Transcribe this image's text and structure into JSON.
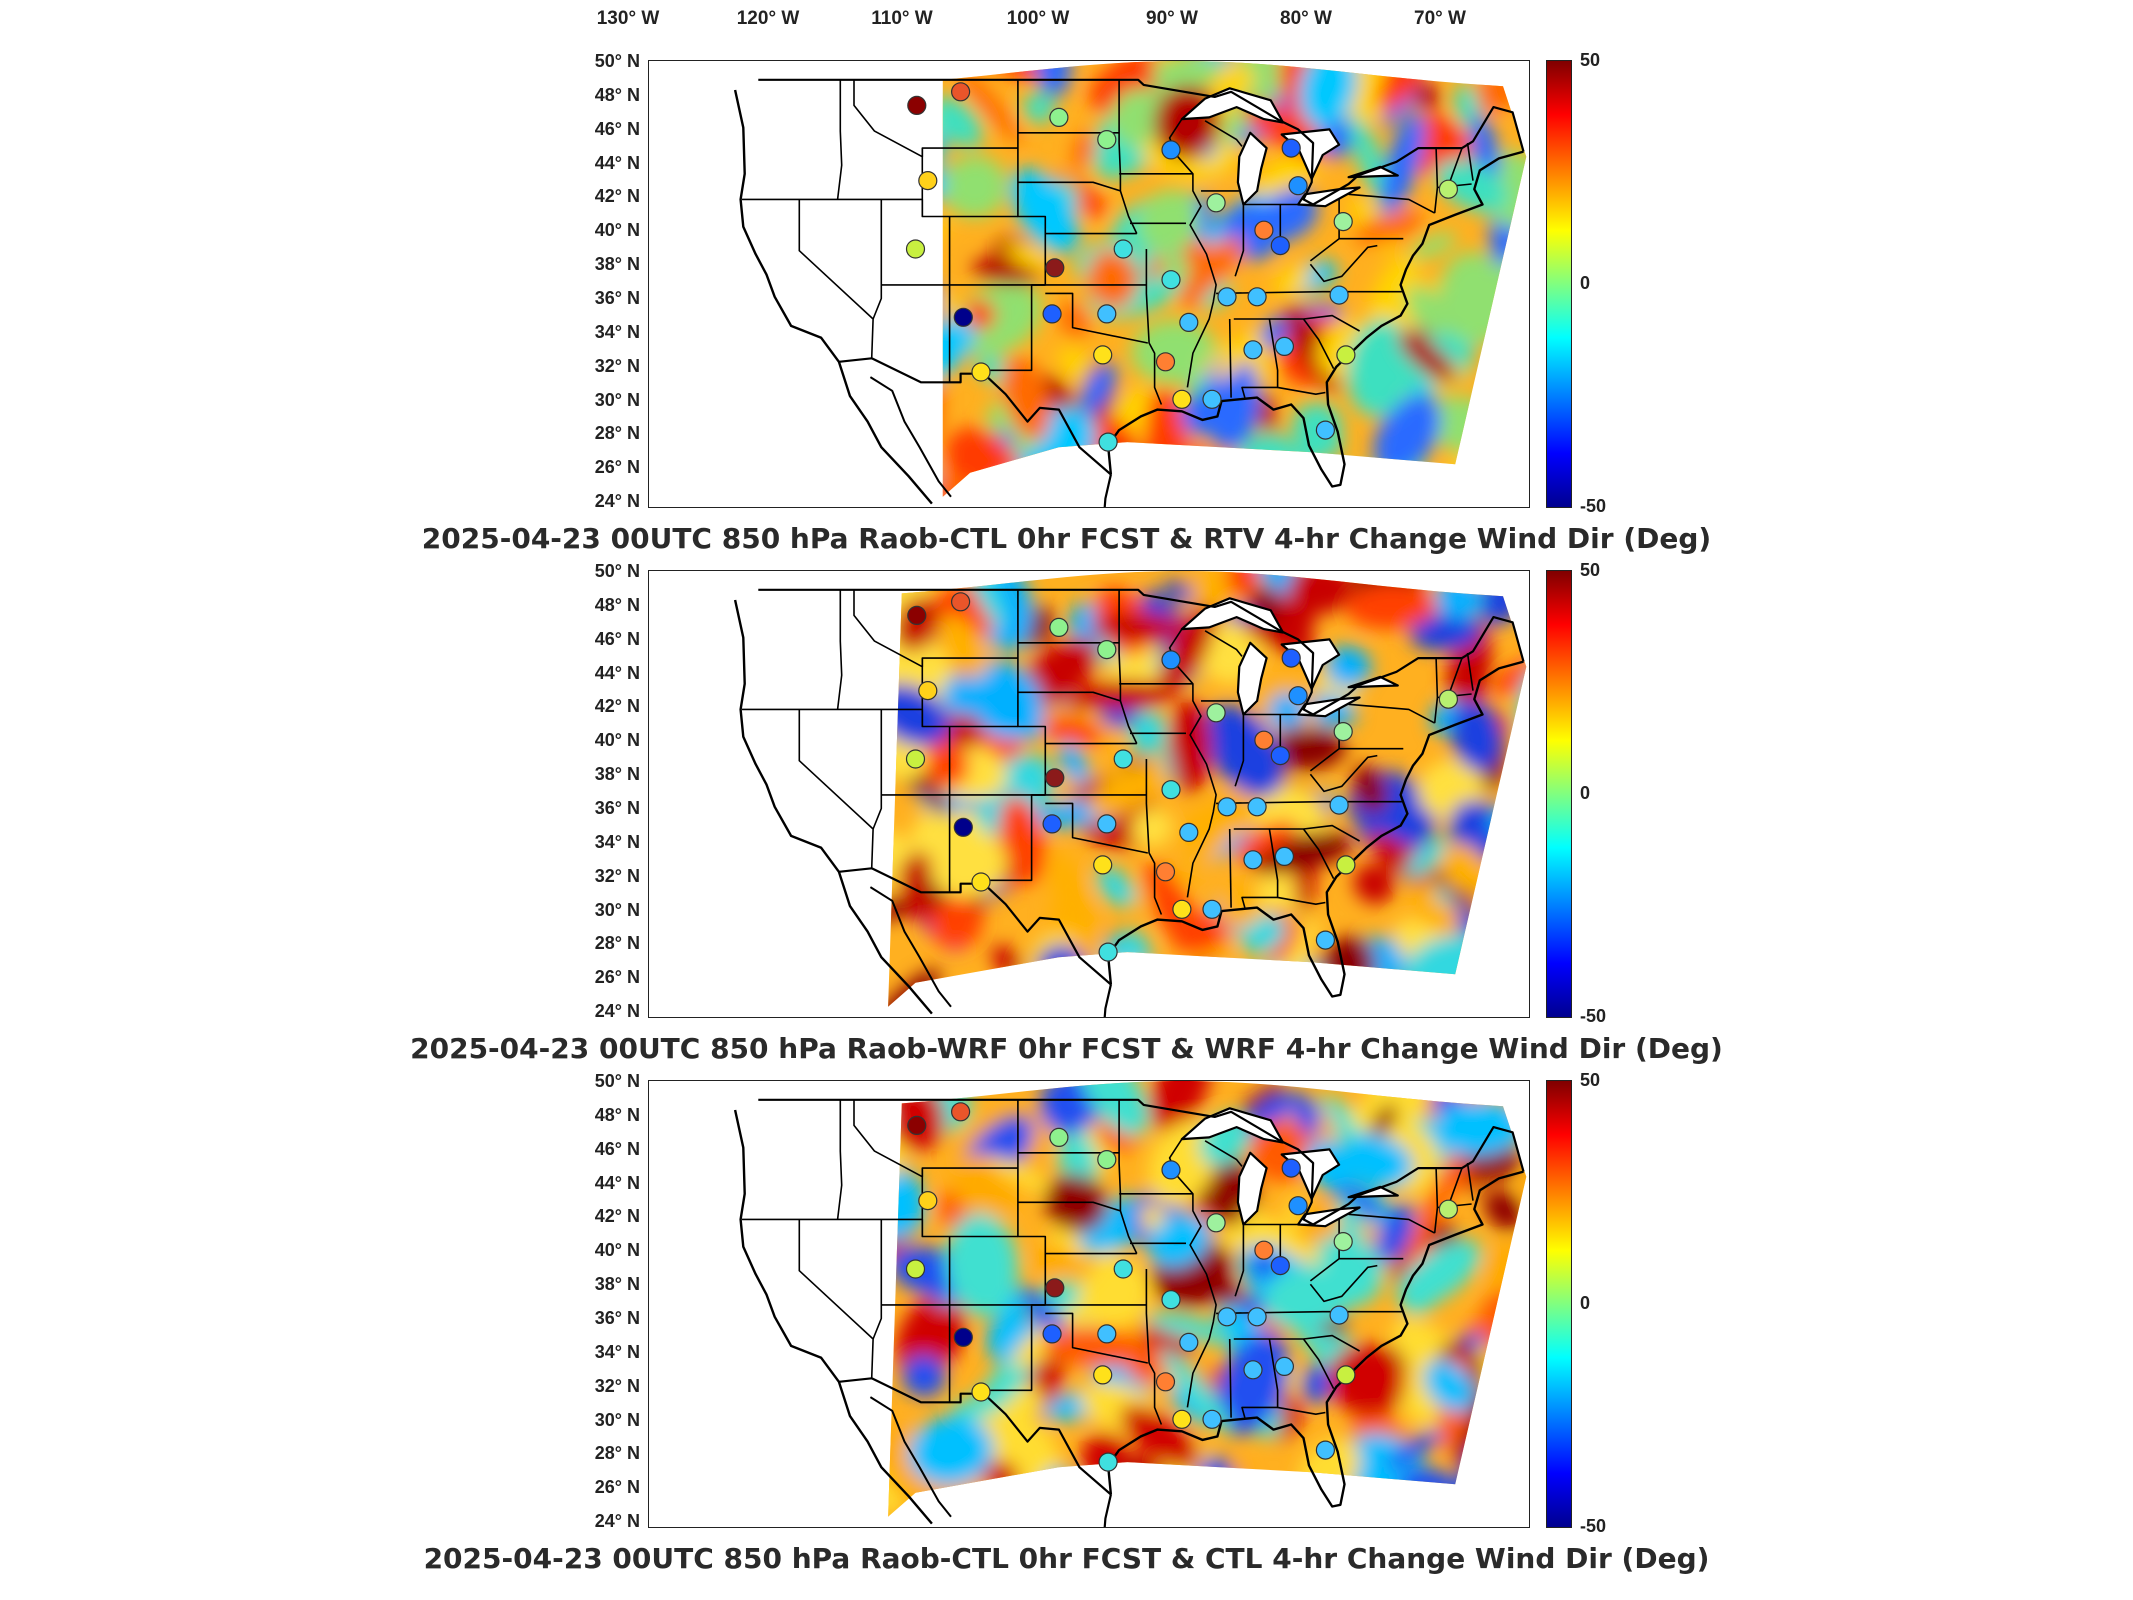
{
  "lon_labels": [
    "130° W",
    "120° W",
    "110° W",
    "100° W",
    "90° W",
    "80° W",
    "70° W"
  ],
  "lat_labels": [
    "50° N",
    "48° N",
    "46° N",
    "44° N",
    "42° N",
    "40° N",
    "38° N",
    "36° N",
    "34° N",
    "32° N",
    "30° N",
    "28° N",
    "26° N",
    "24° N"
  ],
  "colorbar": {
    "max": "50",
    "mid": "0",
    "min": "-50",
    "colors": [
      "#800000",
      "#ff0000",
      "#ff8000",
      "#ffff00",
      "#80ff80",
      "#00ffff",
      "#0080ff",
      "#0000ff",
      "#00008f"
    ]
  },
  "panels": [
    {
      "title": "2025-04-23 00UTC 850 hPa Raob-CTL 0hr FCST & RTV 4-hr Change Wind Dir (Deg)"
    },
    {
      "title": "2025-04-23 00UTC 850 hPa Raob-WRF 0hr FCST & WRF 4-hr Change Wind Dir (Deg)"
    },
    {
      "title": "2025-04-23 00UTC 850 hPa Raob-CTL 0hr FCST & CTL 4-hr Change Wind Dir (Deg)"
    }
  ],
  "raob_stations": [
    {
      "lon": -111.4,
      "lat": 47.5,
      "color": "#8b0000"
    },
    {
      "lon": -108.2,
      "lat": 48.3,
      "color": "#e9552a"
    },
    {
      "lon": -101.0,
      "lat": 46.8,
      "color": "#8ef18e"
    },
    {
      "lon": -97.5,
      "lat": 45.5,
      "color": "#8ef18e"
    },
    {
      "lon": -92.8,
      "lat": 44.9,
      "color": "#1e90ff"
    },
    {
      "lon": -84.0,
      "lat": 45.0,
      "color": "#1e60ff"
    },
    {
      "lon": -83.5,
      "lat": 42.8,
      "color": "#1e90ff"
    },
    {
      "lon": -89.5,
      "lat": 41.8,
      "color": "#9ef19e"
    },
    {
      "lon": -86.0,
      "lat": 40.2,
      "color": "#ff7f32"
    },
    {
      "lon": -84.8,
      "lat": 39.3,
      "color": "#1e60ff"
    },
    {
      "lon": -80.2,
      "lat": 40.7,
      "color": "#9ef19e"
    },
    {
      "lon": -72.5,
      "lat": 42.6,
      "color": "#b8f070"
    },
    {
      "lon": -110.6,
      "lat": 43.1,
      "color": "#ffd11a"
    },
    {
      "lon": -111.5,
      "lat": 39.1,
      "color": "#c8f040"
    },
    {
      "lon": -101.3,
      "lat": 38.0,
      "color": "#8b1a1a"
    },
    {
      "lon": -96.3,
      "lat": 39.1,
      "color": "#40e0e0"
    },
    {
      "lon": -92.8,
      "lat": 37.3,
      "color": "#40e0e0"
    },
    {
      "lon": -88.7,
      "lat": 36.3,
      "color": "#40c0ff"
    },
    {
      "lon": -86.5,
      "lat": 36.3,
      "color": "#40c0ff"
    },
    {
      "lon": -80.5,
      "lat": 36.4,
      "color": "#40c0ff"
    },
    {
      "lon": -108.0,
      "lat": 35.1,
      "color": "#00008b"
    },
    {
      "lon": -101.5,
      "lat": 35.3,
      "color": "#1e60ff"
    },
    {
      "lon": -97.5,
      "lat": 35.3,
      "color": "#40c0ff"
    },
    {
      "lon": -91.5,
      "lat": 34.8,
      "color": "#40c0ff"
    },
    {
      "lon": -86.8,
      "lat": 33.2,
      "color": "#40c0ff"
    },
    {
      "lon": -84.5,
      "lat": 33.4,
      "color": "#40c0ff"
    },
    {
      "lon": -80.0,
      "lat": 32.9,
      "color": "#c8f040"
    },
    {
      "lon": -106.7,
      "lat": 31.9,
      "color": "#ffe11a"
    },
    {
      "lon": -97.8,
      "lat": 32.9,
      "color": "#ffe11a"
    },
    {
      "lon": -93.2,
      "lat": 32.5,
      "color": "#ff7f32"
    },
    {
      "lon": -92.0,
      "lat": 30.3,
      "color": "#ffe11a"
    },
    {
      "lon": -89.8,
      "lat": 30.3,
      "color": "#40c0ff"
    },
    {
      "lon": -97.4,
      "lat": 27.8,
      "color": "#40e0e0"
    },
    {
      "lon": -81.5,
      "lat": 28.5,
      "color": "#40c0ff"
    }
  ]
}
